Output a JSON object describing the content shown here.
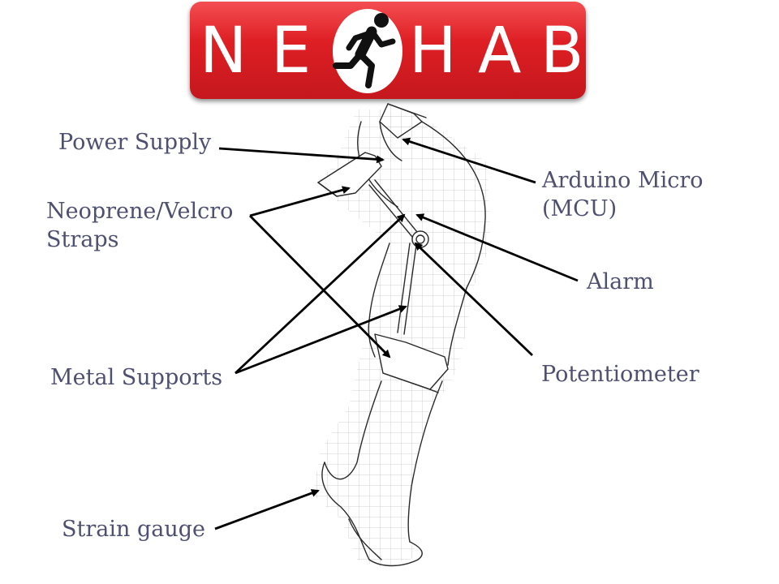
{
  "logo": {
    "letters_left": [
      "N",
      "E"
    ],
    "letters_right": [
      "H",
      "A",
      "B"
    ],
    "icon": "running-man-icon",
    "brand_color": "#e02126"
  },
  "labels": {
    "power_supply": "Power Supply",
    "neoprene_line1": "Neoprene/Velcro",
    "neoprene_line2": "Straps",
    "metal_supports": "Metal Supports",
    "strain_gauge": "Strain gauge",
    "arduino_line1": "Arduino Micro",
    "arduino_line2": "(MCU)",
    "alarm": "Alarm",
    "potentiometer": "Potentiometer"
  },
  "colors": {
    "label_text": "#4e5070",
    "arrows": "#000000",
    "sketch": "#2a2a2a",
    "grid": "#bdbdbd"
  }
}
